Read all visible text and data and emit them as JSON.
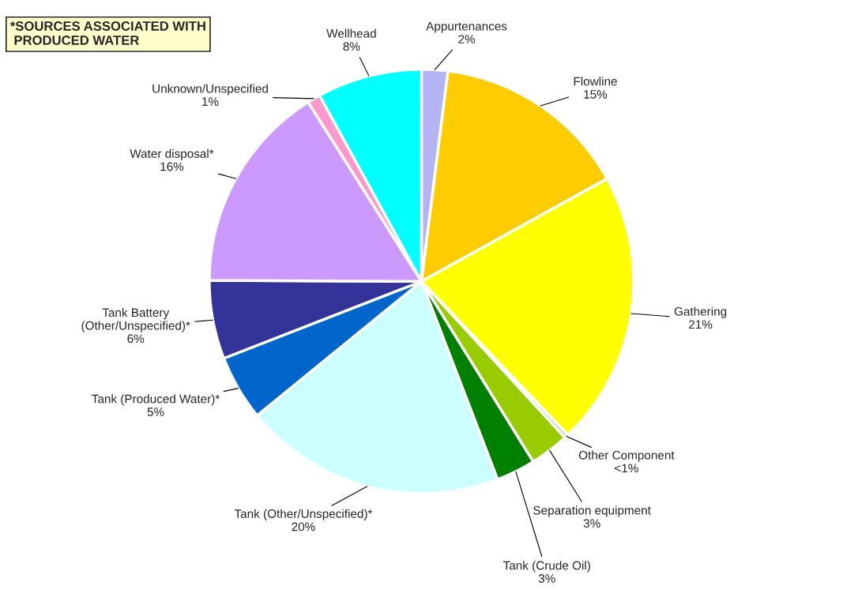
{
  "chart_data": {
    "type": "pie",
    "categories": [
      "Appurtenances",
      "Flowline",
      "Gathering",
      "Other Component",
      "Separation equipment",
      "Tank (Crude Oil)",
      "Tank (Other/Unspecified)*",
      "Tank (Produced Water)*",
      "Tank Battery\n(Other/Unspecified)*",
      "Water disposal*",
      "Unknown/Unspecified",
      "Wellhead"
    ],
    "values": [
      2,
      15,
      21,
      0.3,
      3,
      3,
      20,
      5,
      6,
      16,
      1,
      8
    ],
    "value_labels": [
      "2%",
      "15%",
      "21%",
      "<1%",
      "3%",
      "3%",
      "20%",
      "5%",
      "6%",
      "16%",
      "1%",
      "8%"
    ],
    "colors": [
      "#b4b4f4",
      "#ffcc00",
      "#ffff00",
      "#c0c0c0",
      "#99cc00",
      "#008000",
      "#ccffff",
      "#0066cc",
      "#333399",
      "#cc99ff",
      "#ff99cc",
      "#00ffff"
    ],
    "annotations": [
      "*SOURCES ASSOCIATED WITH\n PRODUCED WATER"
    ]
  }
}
